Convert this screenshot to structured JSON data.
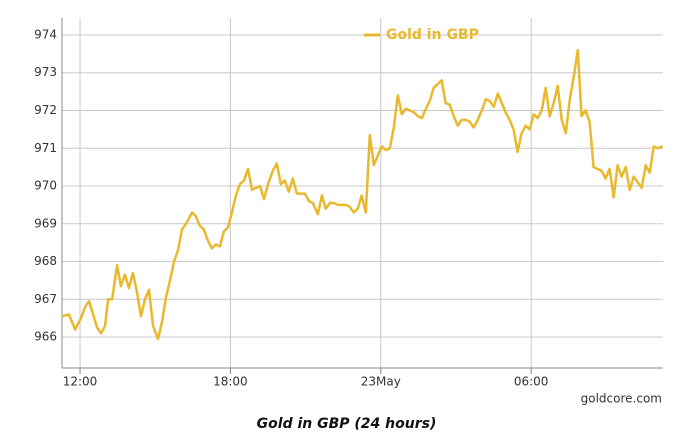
{
  "chart_data": {
    "type": "line",
    "x": [
      11.28,
      11.56,
      11.8,
      12.04,
      12.2,
      12.36,
      12.52,
      12.68,
      12.84,
      13.0,
      13.12,
      13.28,
      13.48,
      13.63,
      13.79,
      13.95,
      14.11,
      14.27,
      14.43,
      14.59,
      14.75,
      14.91,
      15.11,
      15.27,
      15.43,
      15.59,
      15.75,
      15.91,
      16.07,
      16.27,
      16.47,
      16.62,
      16.78,
      16.94,
      17.1,
      17.26,
      17.42,
      17.58,
      17.74,
      17.9,
      18.06,
      18.22,
      18.38,
      18.54,
      18.7,
      18.86,
      19.02,
      19.18,
      19.34,
      19.5,
      19.69,
      19.85,
      20.01,
      20.17,
      20.33,
      20.49,
      20.65,
      20.81,
      20.97,
      21.13,
      21.29,
      21.49,
      21.65,
      21.81,
      21.97,
      22.13,
      22.29,
      22.45,
      22.61,
      22.76,
      22.92,
      23.08,
      23.24,
      23.4,
      23.56,
      23.72,
      23.88,
      24.04,
      24.2,
      24.36,
      24.52,
      24.68,
      24.84,
      25.0,
      25.16,
      25.32,
      25.48,
      25.64,
      25.8,
      25.95,
      26.11,
      26.27,
      26.43,
      26.59,
      26.75,
      26.91,
      27.07,
      27.23,
      27.39,
      27.55,
      27.71,
      27.87,
      28.03,
      28.19,
      28.35,
      28.51,
      28.67,
      28.83,
      28.98,
      29.14,
      29.3,
      29.46,
      29.62,
      29.78,
      29.94,
      30.1,
      30.26,
      30.42,
      30.58,
      30.74,
      30.9,
      31.06,
      31.22,
      31.38,
      31.54,
      31.7,
      31.86,
      32.01,
      32.17,
      32.33,
      32.49,
      32.65,
      32.81,
      32.97,
      33.13,
      33.29,
      33.45,
      33.61,
      33.77,
      33.93,
      34.09,
      34.25,
      34.41,
      34.57,
      34.73,
      34.89,
      35.05,
      35.25
    ],
    "series": [
      {
        "name": "Gold in GBP",
        "color": "#e8b92e",
        "values": [
          966.55,
          966.6,
          966.2,
          966.5,
          966.8,
          966.95,
          966.6,
          966.25,
          966.1,
          966.3,
          967.0,
          967.0,
          967.9,
          967.35,
          967.65,
          967.3,
          967.7,
          967.2,
          966.55,
          967.0,
          967.25,
          966.3,
          965.95,
          966.4,
          967.05,
          967.5,
          968.0,
          968.3,
          968.85,
          969.05,
          969.3,
          969.2,
          968.95,
          968.85,
          968.55,
          968.35,
          968.45,
          968.4,
          968.8,
          968.9,
          969.3,
          969.75,
          970.05,
          970.15,
          970.45,
          969.9,
          969.95,
          970.0,
          969.65,
          970.05,
          970.4,
          970.6,
          970.05,
          970.15,
          969.85,
          970.2,
          969.8,
          969.8,
          969.8,
          969.6,
          969.55,
          969.25,
          969.75,
          969.4,
          969.55,
          969.55,
          969.5,
          969.5,
          969.5,
          969.45,
          969.3,
          969.4,
          969.75,
          969.3,
          971.35,
          970.55,
          970.8,
          971.05,
          970.95,
          971.0,
          971.55,
          972.4,
          971.9,
          972.05,
          972.0,
          971.95,
          971.85,
          971.8,
          972.05,
          972.25,
          972.6,
          972.7,
          972.8,
          972.2,
          972.15,
          971.85,
          971.6,
          971.75,
          971.75,
          971.7,
          971.55,
          971.75,
          972.0,
          972.3,
          972.25,
          972.1,
          972.45,
          972.2,
          971.95,
          971.75,
          971.5,
          970.9,
          971.4,
          971.6,
          971.5,
          971.9,
          971.8,
          972.0,
          972.6,
          971.85,
          972.2,
          972.65,
          971.75,
          971.4,
          972.3,
          972.9,
          973.6,
          971.85,
          972.0,
          971.7,
          970.5,
          970.45,
          970.4,
          970.2,
          970.45,
          969.7,
          970.55,
          970.25,
          970.5,
          969.9,
          970.25,
          970.1,
          969.95,
          970.55,
          970.35,
          971.05,
          971.0,
          971.05
        ]
      }
    ],
    "xlim": [
      11.28,
      35.26
    ],
    "ylim": [
      965.18,
      974.45
    ],
    "xticks": [
      {
        "value": 12,
        "label": "12:00"
      },
      {
        "value": 18,
        "label": "18:00"
      },
      {
        "value": 24,
        "label": "23May"
      },
      {
        "value": 30,
        "label": "06:00"
      }
    ],
    "yticks": [
      966,
      967,
      968,
      969,
      970,
      971,
      972,
      973,
      974
    ],
    "grid": true,
    "legend": "top",
    "source": "goldcore.com"
  },
  "caption": "Gold in GBP (24 hours)"
}
